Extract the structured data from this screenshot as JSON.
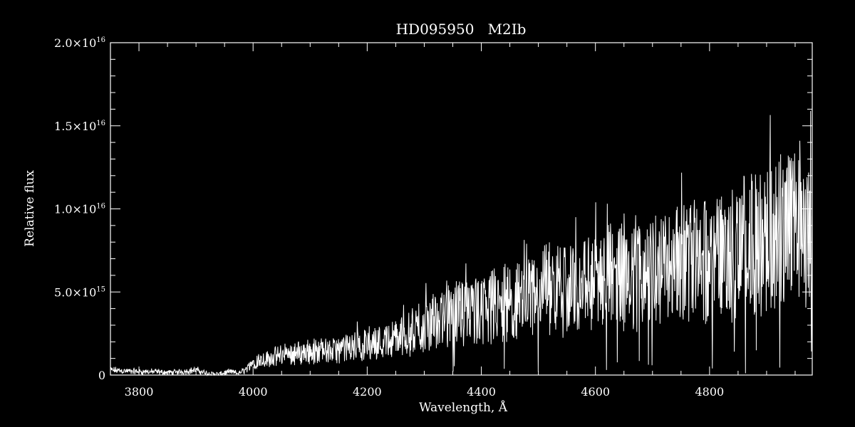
{
  "colors": {
    "background": "#000000",
    "foreground": "#ffffff"
  },
  "chart_data": {
    "type": "line",
    "title": "HD095950   M2Ib",
    "xlabel": "Wavelength, Å",
    "ylabel": "Relative flux",
    "xlim": [
      3750,
      4980
    ],
    "ylim": [
      0,
      2e+16
    ],
    "grid": false,
    "legend": "none",
    "x_ticks": [
      {
        "value": 3800,
        "label": "3800"
      },
      {
        "value": 4000,
        "label": "4000"
      },
      {
        "value": 4200,
        "label": "4200"
      },
      {
        "value": 4400,
        "label": "4400"
      },
      {
        "value": 4600,
        "label": "4600"
      },
      {
        "value": 4800,
        "label": "4800"
      }
    ],
    "y_ticks": [
      {
        "value": 0,
        "mant": "0",
        "exp": ""
      },
      {
        "value": 5000000000000000.0,
        "mant": "5.0×10",
        "exp": "15"
      },
      {
        "value": 1e+16,
        "mant": "1.0×10",
        "exp": "16"
      },
      {
        "value": 1.5e+16,
        "mant": "1.5×10",
        "exp": "16"
      },
      {
        "value": 2e+16,
        "mant": "2.0×10",
        "exp": "16"
      }
    ],
    "series": [
      {
        "x": [
          3750,
          3775,
          3800,
          3825,
          3850,
          3875,
          3900,
          3920,
          3940,
          3960,
          3975,
          3990,
          4000,
          4025,
          4050,
          4075,
          4100,
          4125,
          4150,
          4175,
          4200,
          4225,
          4250,
          4275,
          4300,
          4325,
          4350,
          4375,
          4400,
          4425,
          4450,
          4475,
          4500,
          4525,
          4550,
          4575,
          4600,
          4625,
          4650,
          4675,
          4700,
          4725,
          4750,
          4775,
          4800,
          4825,
          4850,
          4875,
          4900,
          4925,
          4950,
          4965,
          4980
        ],
        "y": [
          300000000000000.0,
          250000000000000.0,
          200000000000000.0,
          200000000000000.0,
          150000000000000.0,
          200000000000000.0,
          300000000000000.0,
          100000000000000.0,
          50000000000000.0,
          200000000000000.0,
          100000000000000.0,
          400000000000000.0,
          800000000000000.0,
          1000000000000000.0,
          1200000000000000.0,
          1300000000000000.0,
          1400000000000000.0,
          1400000000000000.0,
          1500000000000000.0,
          1700000000000000.0,
          1900000000000000.0,
          2000000000000000.0,
          2200000000000000.0,
          2500000000000000.0,
          2900000000000000.0,
          3300000000000000.0,
          3600000000000000.0,
          3800000000000000.0,
          4000000000000000.0,
          4200000000000000.0,
          4300000000000000.0,
          4600000000000000.0,
          4900000000000000.0,
          5000000000000000.0,
          5100000000000000.0,
          5300000000000000.0,
          5600000000000000.0,
          5800000000000000.0,
          6000000000000000.0,
          6100000000000000.0,
          6300000000000000.0,
          6600000000000000.0,
          6900000000000000.0,
          7000000000000000.0,
          7100000000000000.0,
          7300000000000000.0,
          7500000000000000.0,
          7900000000000000.0,
          8300000000000000.0,
          8700000000000000.0,
          9100000000000000.0,
          8800000000000000.0,
          8600000000000000.0
        ]
      }
    ]
  }
}
